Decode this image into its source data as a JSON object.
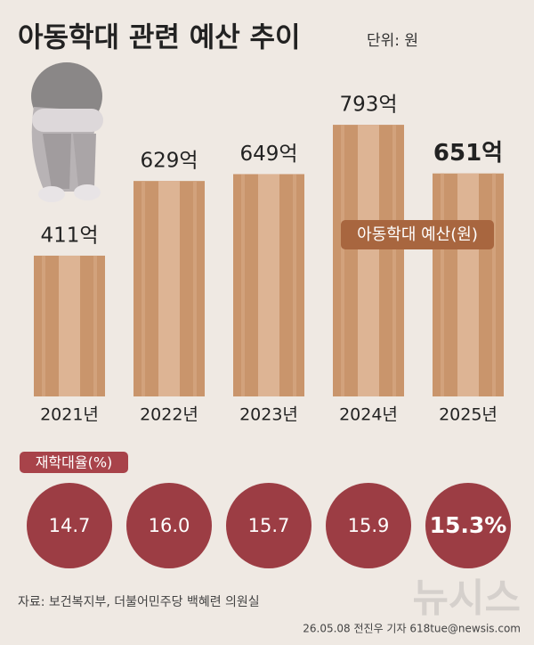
{
  "chart_data": {
    "type": "bar",
    "title": "아동학대 관련 예산 추이",
    "unit": "단위: 원",
    "categories": [
      "2021년",
      "2022년",
      "2023년",
      "2024년",
      "2025년"
    ],
    "series": [
      {
        "name": "아동학대 예산(원)",
        "color": "#c9956c",
        "values": [
          411,
          629,
          649,
          793,
          651
        ],
        "value_labels": [
          "411억",
          "629억",
          "649억",
          "793억",
          "651억"
        ]
      }
    ],
    "highlight": 4,
    "rates": {
      "name": "재학대율(%)",
      "color": "#9c3d44",
      "values": [
        14.7,
        16.0,
        15.7,
        15.9,
        15.3
      ],
      "value_labels": [
        "14.7",
        "16.0",
        "15.7",
        "15.9",
        "15.3%"
      ]
    },
    "source": "자료: 보건복지부, 더불어민주당 백혜련 의원실",
    "credit": "26.05.08 전진우 기자 618tue@newsis.com",
    "watermark": "뉴시스"
  }
}
